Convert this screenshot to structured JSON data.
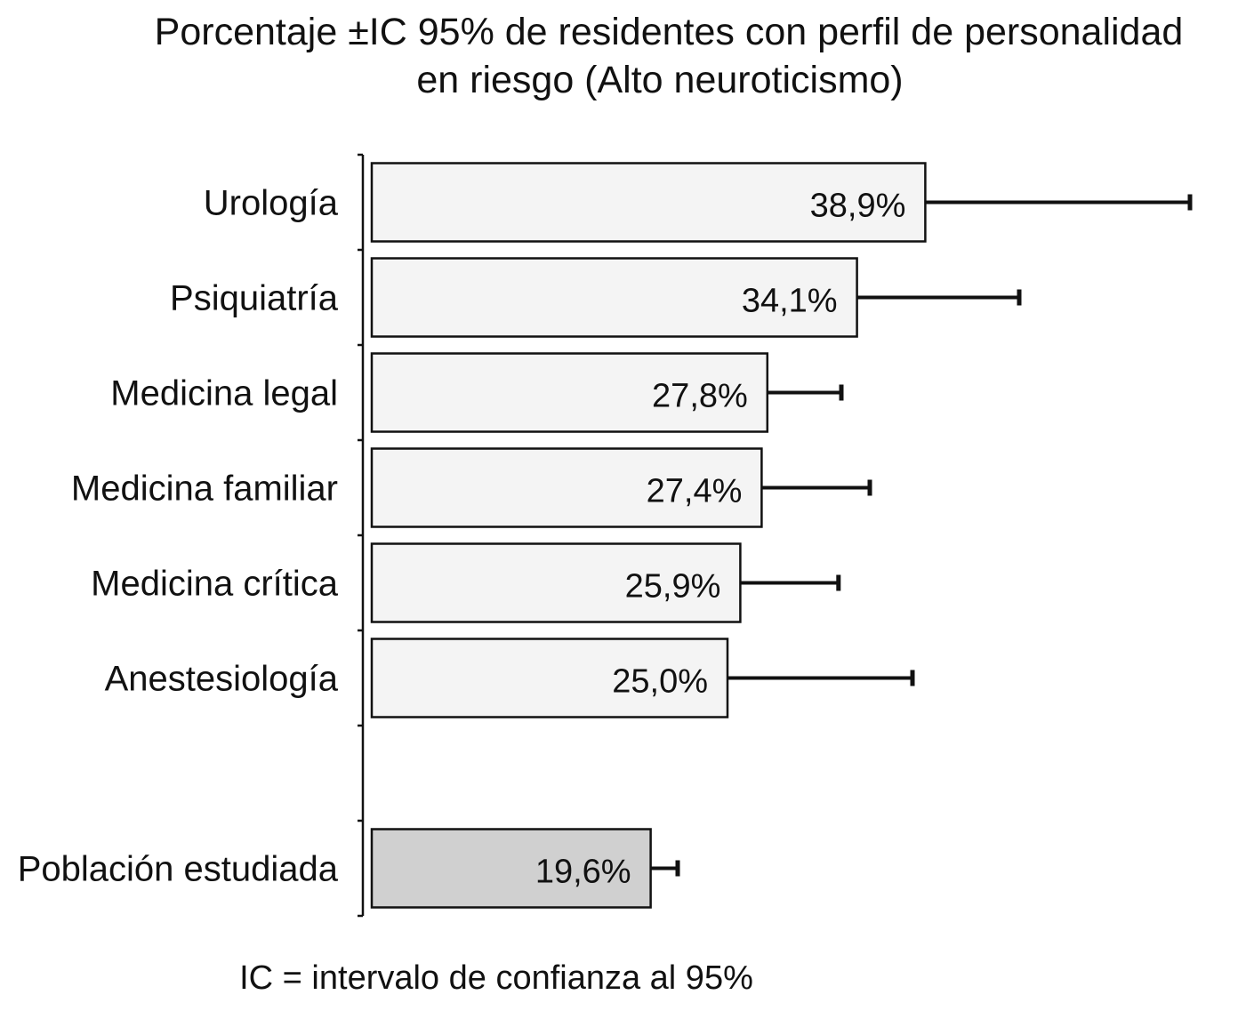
{
  "chart_data": {
    "type": "bar",
    "orientation": "horizontal",
    "title_lines": [
      "Porcentaje ±IC 95% de residentes con perfil de personalidad",
      "en riesgo (Alto neuroticismo)"
    ],
    "categories": [
      "Urología",
      "Psiquiatría",
      "Medicina legal",
      "Medicina familiar",
      "Medicina crítica",
      "Anestesiología",
      "Población estudiada"
    ],
    "values": [
      38.9,
      34.1,
      27.8,
      27.4,
      25.9,
      25.0,
      19.6
    ],
    "value_labels": [
      "38,9%",
      "34,1%",
      "27,8%",
      "27,4%",
      "25,9%",
      "25,0%",
      "19,6%"
    ],
    "ci_upper": [
      57.5,
      45.5,
      33.0,
      35.0,
      32.8,
      38.0,
      21.5
    ],
    "bar_colors": [
      "#f4f4f4",
      "#f4f4f4",
      "#f4f4f4",
      "#f4f4f4",
      "#f4f4f4",
      "#f4f4f4",
      "#d0d0d0"
    ],
    "xlim": [
      0,
      60
    ],
    "grid": false,
    "legend": "none",
    "footnote": "IC = intervalo de confianza al 95%"
  }
}
